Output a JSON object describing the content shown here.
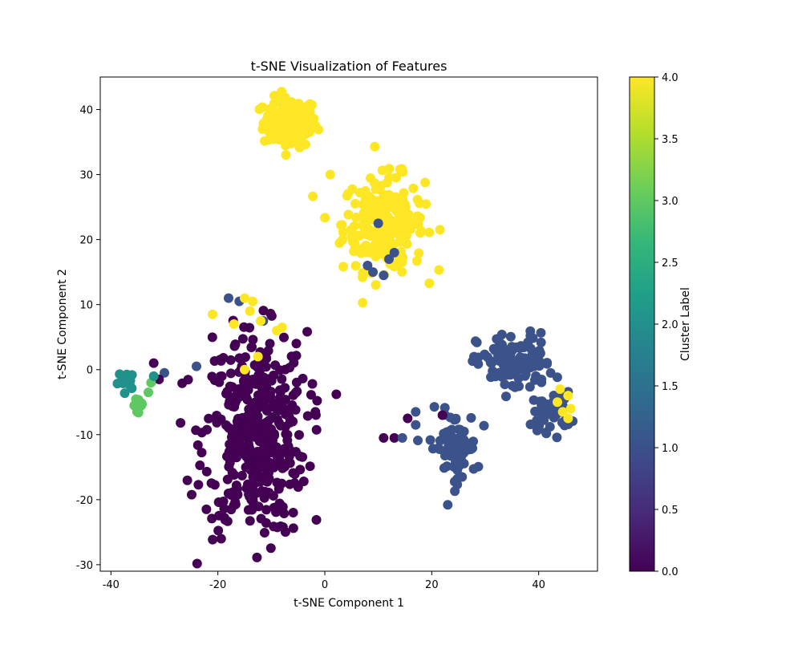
{
  "chart_data": {
    "type": "scatter",
    "title": "t-SNE Visualization of Features",
    "xlabel": "t-SNE Component 1",
    "ylabel": "t-SNE Component 2",
    "xlim": [
      -42,
      51
    ],
    "ylim": [
      -31,
      45
    ],
    "xticks": [
      "-40",
      "-20",
      "0",
      "20",
      "40"
    ],
    "yticks": [
      "-30",
      "-20",
      "-10",
      "0",
      "10",
      "20",
      "30",
      "40"
    ],
    "colorbar": {
      "label": "Cluster Label",
      "range": [
        0.0,
        4.0
      ],
      "ticks": [
        "0.0",
        "0.5",
        "1.0",
        "1.5",
        "2.0",
        "2.5",
        "3.0",
        "3.5",
        "4.0"
      ],
      "colormap": [
        "#440154",
        "#482878",
        "#3e4989",
        "#31688e",
        "#26828e",
        "#1f9e89",
        "#35b779",
        "#6ece58",
        "#b5de2b",
        "#fde725"
      ]
    },
    "grid": false,
    "marker_size": 6,
    "clusters": [
      {
        "label": 4,
        "color": "#fde725",
        "center": [
          -6.5,
          38.0
        ],
        "spread": [
          2.5,
          1.9
        ],
        "count": 150
      },
      {
        "label": 4,
        "color": "#fde725",
        "center": [
          11.0,
          22.5
        ],
        "spread": [
          3.8,
          3.6
        ],
        "count": 230
      },
      {
        "label": 0,
        "color": "#440154",
        "center": [
          -13.0,
          -10.0
        ],
        "spread": [
          4.8,
          7.8
        ],
        "count": 420
      },
      {
        "label": 1,
        "color": "#3b528b",
        "center": [
          35.5,
          1.0
        ],
        "spread": [
          3.5,
          2.3
        ],
        "count": 110
      },
      {
        "label": 1,
        "color": "#3b528b",
        "center": [
          42.5,
          -6.5
        ],
        "spread": [
          1.8,
          1.5
        ],
        "count": 45
      },
      {
        "label": 1,
        "color": "#3b528b",
        "center": [
          24.0,
          -12.0
        ],
        "spread": [
          2.2,
          2.8
        ],
        "count": 70
      },
      {
        "label": 2,
        "color": "#21918c",
        "center": [
          -37.0,
          -1.8
        ],
        "spread": [
          0.8,
          0.7
        ],
        "count": 16
      },
      {
        "label": 3,
        "color": "#5ec962",
        "center": [
          -34.5,
          -5.5
        ],
        "spread": [
          0.7,
          0.7
        ],
        "count": 12
      }
    ],
    "points": [
      {
        "x": 1.0,
        "y": 30.0,
        "c": 4
      },
      {
        "x": 10.0,
        "y": 22.5,
        "c": 1
      },
      {
        "x": 9.0,
        "y": 15.0,
        "c": 1
      },
      {
        "x": 8.0,
        "y": 16.0,
        "c": 1
      },
      {
        "x": 11.0,
        "y": 14.5,
        "c": 1
      },
      {
        "x": 12.0,
        "y": 17.0,
        "c": 1
      },
      {
        "x": 13.0,
        "y": 18.0,
        "c": 1
      },
      {
        "x": -16.0,
        "y": 10.5,
        "c": 1
      },
      {
        "x": -18.0,
        "y": 11.0,
        "c": 1
      },
      {
        "x": -11.5,
        "y": 7.5,
        "c": 1
      },
      {
        "x": -24.0,
        "y": 0.5,
        "c": 1
      },
      {
        "x": -15.0,
        "y": 11.0,
        "c": 4
      },
      {
        "x": -13.5,
        "y": 10.5,
        "c": 4
      },
      {
        "x": -21.0,
        "y": 8.5,
        "c": 4
      },
      {
        "x": -17.0,
        "y": 7.0,
        "c": 4
      },
      {
        "x": -12.0,
        "y": 7.5,
        "c": 4
      },
      {
        "x": -9.0,
        "y": 6.0,
        "c": 4
      },
      {
        "x": -8.0,
        "y": 6.5,
        "c": 4
      },
      {
        "x": -14.0,
        "y": 9.0,
        "c": 4
      },
      {
        "x": -12.5,
        "y": 2.0,
        "c": 4
      },
      {
        "x": -15.0,
        "y": 0.0,
        "c": 4
      },
      {
        "x": -32.0,
        "y": 1.0,
        "c": 0
      },
      {
        "x": -30.0,
        "y": -0.5,
        "c": 1
      },
      {
        "x": -31.0,
        "y": -1.5,
        "c": 0
      },
      {
        "x": -32.5,
        "y": -2.0,
        "c": 3
      },
      {
        "x": -33.0,
        "y": -3.5,
        "c": 3
      },
      {
        "x": -32.0,
        "y": -1.0,
        "c": 2
      },
      {
        "x": 11.0,
        "y": -10.5,
        "c": 0
      },
      {
        "x": 13.0,
        "y": -10.5,
        "c": 0
      },
      {
        "x": 14.5,
        "y": -10.5,
        "c": 1
      },
      {
        "x": 15.5,
        "y": -7.5,
        "c": 0
      },
      {
        "x": 17.0,
        "y": -6.5,
        "c": 1
      },
      {
        "x": 17.0,
        "y": -8.5,
        "c": 1
      },
      {
        "x": 22.0,
        "y": -7.0,
        "c": 0
      },
      {
        "x": 44.0,
        "y": -3.0,
        "c": 4
      },
      {
        "x": 45.5,
        "y": -4.0,
        "c": 4
      },
      {
        "x": 46.0,
        "y": -6.0,
        "c": 4
      },
      {
        "x": 45.5,
        "y": -7.5,
        "c": 4
      },
      {
        "x": 43.5,
        "y": -5.0,
        "c": 4
      },
      {
        "x": 44.5,
        "y": -6.5,
        "c": 4
      }
    ]
  }
}
